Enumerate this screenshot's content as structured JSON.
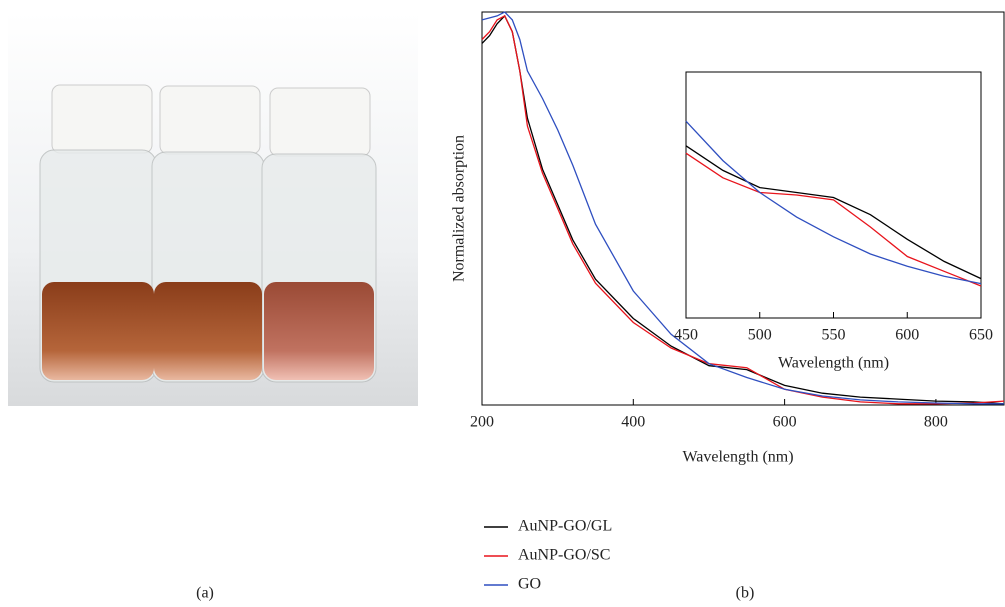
{
  "captions": {
    "a": "(a)",
    "b": "(b)"
  },
  "chart_data": [
    {
      "type": "line",
      "xlabel": "Wavelength (nm)",
      "ylabel": "Normalized absorption",
      "x": [
        200,
        210,
        220,
        230,
        240,
        250,
        260,
        280,
        300,
        320,
        350,
        400,
        450,
        500,
        550,
        600,
        650,
        700,
        750,
        800,
        850,
        890
      ],
      "series": [
        {
          "name": "AuNP-GO/GL",
          "color": "#000000",
          "values": [
            0.92,
            0.94,
            0.97,
            0.99,
            0.95,
            0.85,
            0.73,
            0.6,
            0.51,
            0.42,
            0.32,
            0.22,
            0.15,
            0.1,
            0.09,
            0.05,
            0.03,
            0.02,
            0.015,
            0.01,
            0.008,
            0.003
          ]
        },
        {
          "name": "AuNP-GO/SC",
          "color": "#e8141c",
          "values": [
            0.93,
            0.95,
            0.98,
            0.99,
            0.95,
            0.85,
            0.71,
            0.59,
            0.5,
            0.41,
            0.31,
            0.21,
            0.145,
            0.105,
            0.095,
            0.04,
            0.02,
            0.008,
            0.003,
            0.003,
            0.005,
            0.01
          ]
        },
        {
          "name": "GO",
          "color": "#2f4fc0",
          "values": [
            0.98,
            0.985,
            0.99,
            1.0,
            0.98,
            0.93,
            0.85,
            0.78,
            0.7,
            0.61,
            0.46,
            0.29,
            0.18,
            0.105,
            0.07,
            0.04,
            0.023,
            0.013,
            0.008,
            0.005,
            0.003,
            0.003
          ]
        }
      ],
      "xlim": [
        200,
        890
      ],
      "ylim": [
        0,
        1
      ],
      "xticks": [
        200,
        400,
        600,
        800
      ]
    },
    {
      "type": "line",
      "xlabel": "Wavelength (nm)",
      "x": [
        450,
        475,
        500,
        525,
        550,
        575,
        600,
        625,
        650
      ],
      "series": [
        {
          "color": "#000000",
          "values": [
            0.7,
            0.6,
            0.53,
            0.51,
            0.49,
            0.42,
            0.32,
            0.23,
            0.16
          ]
        },
        {
          "color": "#e8141c",
          "values": [
            0.67,
            0.57,
            0.51,
            0.5,
            0.48,
            0.37,
            0.25,
            0.19,
            0.13
          ]
        },
        {
          "color": "#2f4fc0",
          "values": [
            0.8,
            0.64,
            0.51,
            0.41,
            0.33,
            0.26,
            0.21,
            0.17,
            0.14
          ]
        }
      ],
      "xlim": [
        450,
        650
      ],
      "ylim": [
        0,
        1
      ],
      "xticks": [
        450,
        500,
        550,
        600,
        650
      ]
    }
  ]
}
